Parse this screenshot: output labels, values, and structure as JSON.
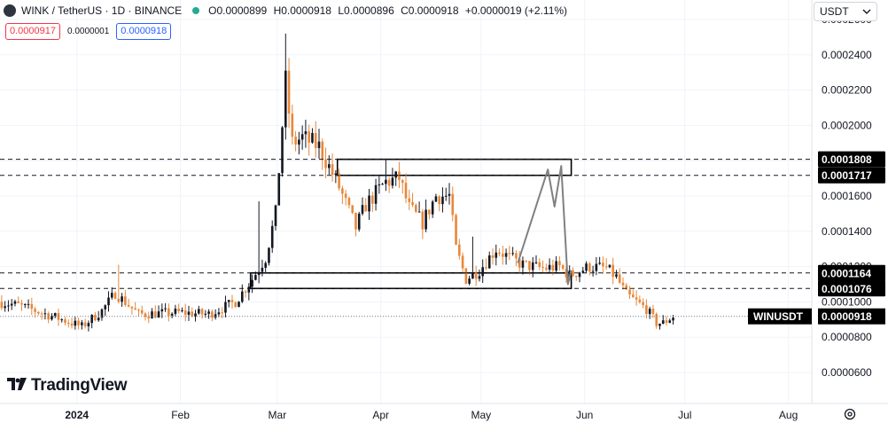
{
  "header": {
    "title": "WINK / TetherUS · 1D · BINANCE",
    "ohlc": {
      "o_label": "O",
      "o": "0.0000899",
      "h_label": "H",
      "h": "0.0000918",
      "l_label": "L",
      "l": "0.0000896",
      "c_label": "C",
      "c": "0.0000918",
      "change": "+0.0000019 (+2.11%)"
    },
    "sell_price": "0.0000917",
    "spread": "0.0000001",
    "buy_price": "0.0000918"
  },
  "currency_selector": {
    "label": "USDT"
  },
  "branding": {
    "name": "TradingView"
  },
  "colors": {
    "up": "#131722",
    "down": "#e8883a",
    "grid": "#f0f3fa",
    "dashed": "#131722",
    "pattern": "#808080",
    "background": "#ffffff"
  },
  "chart_data": {
    "type": "candlestick",
    "symbol": "WINUSDT",
    "timeframe": "1D",
    "ylim": [
      6e-05,
      0.00026
    ],
    "y_ticks": [
      {
        "value": 6e-05,
        "label": "0.0000600"
      },
      {
        "value": 8e-05,
        "label": "0.0000800"
      },
      {
        "value": 0.0001,
        "label": "0.0001000"
      },
      {
        "value": 0.00012,
        "label": "0.0001200"
      },
      {
        "value": 0.00014,
        "label": "0.0001400"
      },
      {
        "value": 0.00016,
        "label": "0.0001600"
      },
      {
        "value": 0.00018,
        "label": "0.0001800"
      },
      {
        "value": 0.0002,
        "label": "0.0002000"
      },
      {
        "value": 0.00022,
        "label": "0.0002200"
      },
      {
        "value": 0.00024,
        "label": "0.0002400"
      },
      {
        "value": 0.00026,
        "label": "0.0002600"
      }
    ],
    "x_ticks": [
      {
        "label": "2024",
        "date": "2024-01-01",
        "bold": true
      },
      {
        "label": "Feb",
        "date": "2024-02-01"
      },
      {
        "label": "Mar",
        "date": "2024-03-01"
      },
      {
        "label": "Apr",
        "date": "2024-04-01"
      },
      {
        "label": "May",
        "date": "2024-05-01"
      },
      {
        "label": "Jun",
        "date": "2024-06-01"
      },
      {
        "label": "Jul",
        "date": "2024-07-01"
      },
      {
        "label": "Aug",
        "date": "2024-08-01"
      }
    ],
    "x_range": [
      "2023-12-09",
      "2024-08-08"
    ],
    "price_levels": [
      {
        "value": 0.0001808,
        "label": "0.0001808"
      },
      {
        "value": 0.0001717,
        "label": "0.0001717"
      },
      {
        "value": 0.0001164,
        "label": "0.0001164"
      },
      {
        "value": 0.0001076,
        "label": "0.0001076"
      }
    ],
    "last_price": {
      "symbol": "WINUSDT",
      "label": "0.0000918",
      "value": 9.18e-05
    },
    "zones": [
      {
        "from_date": "2024-03-19",
        "to_date": "2024-05-28",
        "low": 0.0001717,
        "high": 0.0001808
      },
      {
        "from_date": "2024-02-22",
        "to_date": "2024-05-28",
        "low": 0.0001076,
        "high": 0.0001164
      }
    ],
    "projection_path": [
      {
        "date": "2024-05-12",
        "value": 0.000122
      },
      {
        "date": "2024-05-21",
        "value": 0.000175
      },
      {
        "date": "2024-05-23",
        "value": 0.000154
      },
      {
        "date": "2024-05-25",
        "value": 0.000177
      },
      {
        "date": "2024-05-27",
        "value": 0.00011
      },
      {
        "date": "2024-05-28",
        "value": 0.000118
      }
    ],
    "key_points": [
      {
        "date": "2023-12-09",
        "value": 0.0001
      },
      {
        "date": "2023-12-15",
        "value": 9.8e-05
      },
      {
        "date": "2023-12-25",
        "value": 9.2e-05
      },
      {
        "date": "2024-01-03",
        "value": 8.6e-05
      },
      {
        "date": "2024-01-09",
        "value": 9.5e-05
      },
      {
        "date": "2024-01-13",
        "value": 0.000105
      },
      {
        "date": "2024-01-20",
        "value": 9.3e-05
      },
      {
        "date": "2024-02-01",
        "value": 9.4e-05
      },
      {
        "date": "2024-02-10",
        "value": 9.3e-05
      },
      {
        "date": "2024-02-18",
        "value": 0.0001
      },
      {
        "date": "2024-02-23",
        "value": 0.000113
      },
      {
        "date": "2024-02-27",
        "value": 0.000125
      },
      {
        "date": "2024-03-01",
        "value": 0.00015
      },
      {
        "date": "2024-03-04",
        "value": 0.000225
      },
      {
        "date": "2024-03-06",
        "value": 0.00019
      },
      {
        "date": "2024-03-09",
        "value": 0.000193
      },
      {
        "date": "2024-03-14",
        "value": 0.000188
      },
      {
        "date": "2024-03-20",
        "value": 0.000165
      },
      {
        "date": "2024-03-25",
        "value": 0.000142
      },
      {
        "date": "2024-03-28",
        "value": 0.000155
      },
      {
        "date": "2024-04-03",
        "value": 0.000168
      },
      {
        "date": "2024-04-07",
        "value": 0.00017
      },
      {
        "date": "2024-04-10",
        "value": 0.000153
      },
      {
        "date": "2024-04-14",
        "value": 0.000145
      },
      {
        "date": "2024-04-18",
        "value": 0.00016
      },
      {
        "date": "2024-04-22",
        "value": 0.00016
      },
      {
        "date": "2024-04-24",
        "value": 0.00013
      },
      {
        "date": "2024-04-27",
        "value": 0.000113
      },
      {
        "date": "2024-05-01",
        "value": 0.000118
      },
      {
        "date": "2024-05-06",
        "value": 0.00013
      },
      {
        "date": "2024-05-10",
        "value": 0.000125
      },
      {
        "date": "2024-05-14",
        "value": 0.000121
      },
      {
        "date": "2024-05-20",
        "value": 0.000119
      },
      {
        "date": "2024-05-25",
        "value": 0.00012
      },
      {
        "date": "2024-05-28",
        "value": 0.000115
      },
      {
        "date": "2024-06-03",
        "value": 0.00012
      },
      {
        "date": "2024-06-08",
        "value": 0.000119
      },
      {
        "date": "2024-06-11",
        "value": 0.000114
      },
      {
        "date": "2024-06-14",
        "value": 0.000104
      },
      {
        "date": "2024-06-17",
        "value": 0.0001
      },
      {
        "date": "2024-06-20",
        "value": 9.6e-05
      },
      {
        "date": "2024-06-23",
        "value": 8.8e-05
      },
      {
        "date": "2024-06-25",
        "value": 8.8e-05
      },
      {
        "date": "2024-06-28",
        "value": 9.18e-05
      }
    ]
  }
}
